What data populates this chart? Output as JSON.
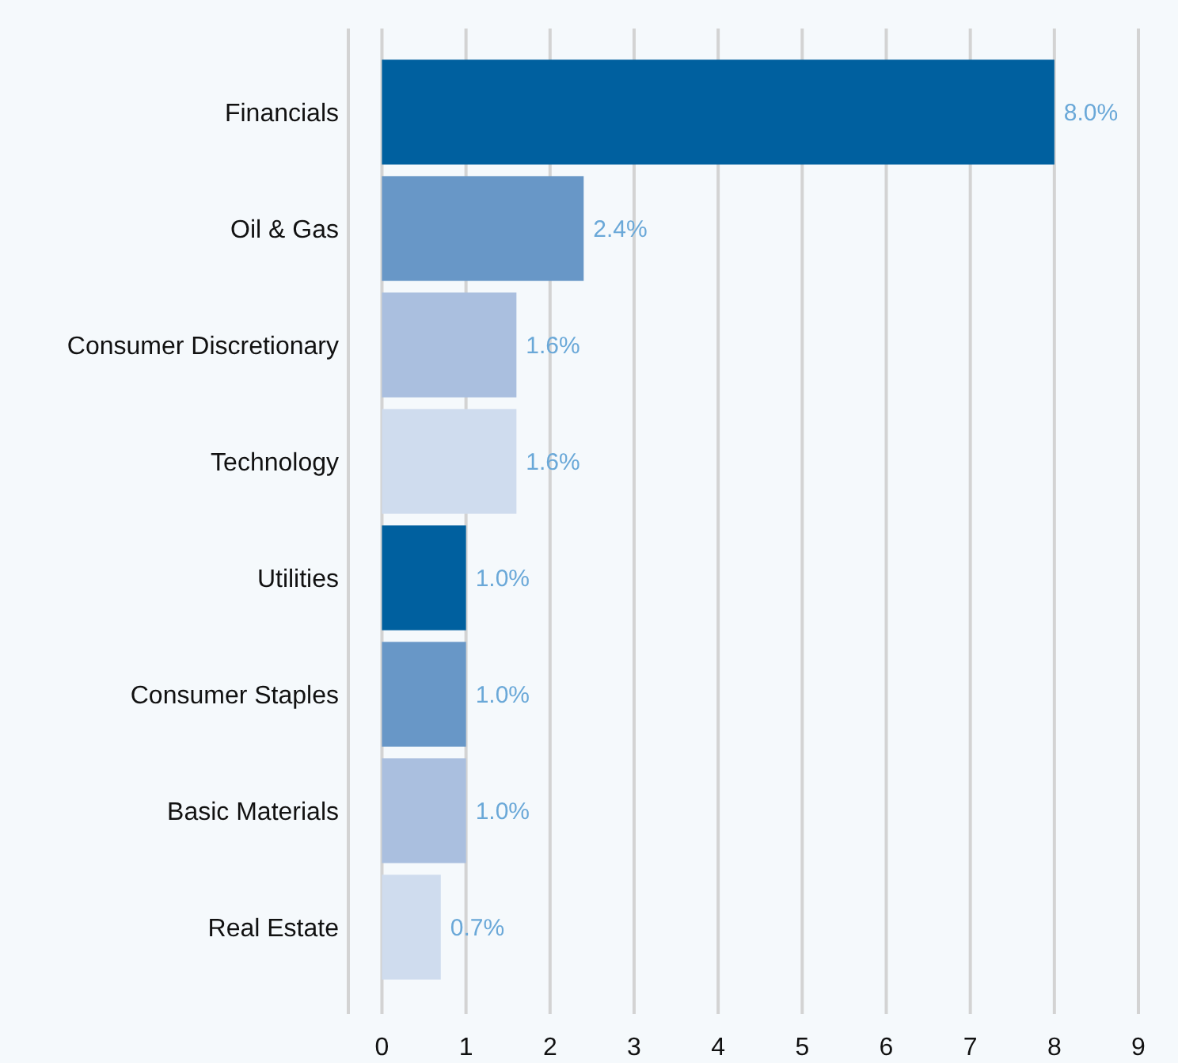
{
  "chart_data": {
    "type": "bar",
    "orientation": "horizontal",
    "categories": [
      "Financials",
      "Oil & Gas",
      "Consumer Discretionary",
      "Technology",
      "Utilities",
      "Consumer Staples",
      "Basic Materials",
      "Real Estate"
    ],
    "values": [
      8.0,
      2.4,
      1.6,
      1.6,
      1.0,
      1.0,
      1.0,
      0.7
    ],
    "colors": [
      "#00609f",
      "#6897c7",
      "#aabfdf",
      "#cfdcee",
      "#00609f",
      "#6897c7",
      "#aabfdf",
      "#cfdcee"
    ],
    "value_labels": [
      "8.0%",
      "2.4%",
      "1.6%",
      "1.6%",
      "1.0%",
      "1.0%",
      "1.0%",
      "0.7%"
    ],
    "xlim": [
      -0.4,
      9
    ],
    "xticks": [
      0,
      1,
      2,
      3,
      4,
      5,
      6,
      7,
      8,
      9
    ],
    "grid": "x"
  }
}
